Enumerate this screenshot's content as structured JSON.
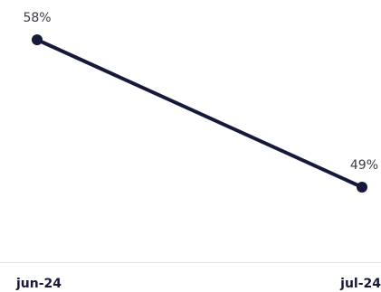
{
  "chart_data": {
    "type": "line",
    "categories": [
      "jun-24",
      "jul-24"
    ],
    "series": [
      {
        "values": [
          58,
          49
        ],
        "labels": [
          "58%",
          "49%"
        ],
        "color": "#161a3a"
      }
    ],
    "ylim": [
      25,
      62
    ],
    "grid": false,
    "axis_color": "#e3e3e6"
  }
}
